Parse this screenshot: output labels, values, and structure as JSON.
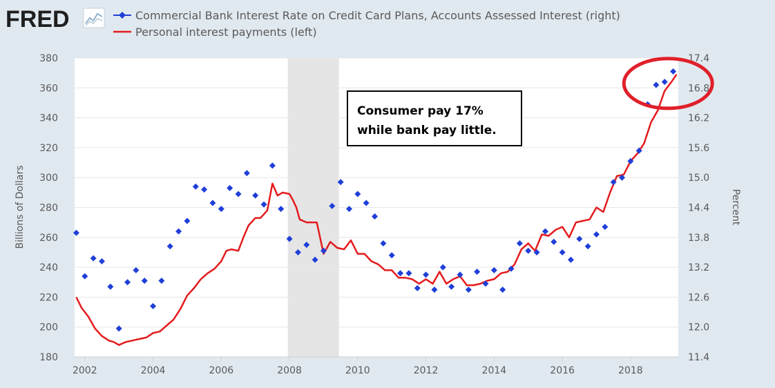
{
  "logo": {
    "text": "FRED"
  },
  "colors": {
    "background": "#e1e9f0",
    "plot_background": "#ffffff",
    "recession": "#e5e5e5",
    "gridline": "#e6e6e6",
    "series_blue": "#1f3fd8",
    "series_red": "#e41a1c",
    "highlight_circle": "#e0202a"
  },
  "chart_data": {
    "type": "line",
    "title": "",
    "legend": [
      {
        "label": "Commercial Bank Interest Rate on Credit Card Plans, Accounts Assessed Interest (right)",
        "marker": "diamond-line",
        "color": "#1f3fd8"
      },
      {
        "label": "Personal interest payments (left)",
        "marker": "line",
        "color": "#e41a1c"
      }
    ],
    "legend_placement": "top",
    "xlim": [
      2001.7,
      2019.4
    ],
    "x_ticks": [
      2002,
      2004,
      2006,
      2008,
      2010,
      2012,
      2014,
      2016,
      2018
    ],
    "y_left": {
      "label": "Billions of Dollars",
      "lim": [
        180,
        380
      ],
      "ticks": [
        180,
        200,
        220,
        240,
        260,
        280,
        300,
        320,
        340,
        360,
        380
      ]
    },
    "y_right": {
      "label": "Percent",
      "lim": [
        11.4,
        17.4
      ],
      "ticks": [
        "11.4",
        "12.0",
        "12.6",
        "13.2",
        "13.8",
        "14.4",
        "15.0",
        "15.6",
        "16.2",
        "16.8",
        "17.4"
      ]
    },
    "grid": true,
    "recessions": [
      [
        2007.95,
        2009.45
      ]
    ],
    "series": [
      {
        "name": "Personal interest payments (left)",
        "axis": "left",
        "style": "line",
        "color": "#e41a1c",
        "x": [
          2001.75,
          2001.9,
          2002.1,
          2002.3,
          2002.5,
          2002.7,
          2002.85,
          2003.0,
          2003.2,
          2003.4,
          2003.6,
          2003.8,
          2004.0,
          2004.2,
          2004.4,
          2004.6,
          2004.8,
          2005.0,
          2005.2,
          2005.4,
          2005.6,
          2005.8,
          2006.0,
          2006.15,
          2006.3,
          2006.5,
          2006.65,
          2006.8,
          2007.0,
          2007.15,
          2007.35,
          2007.5,
          2007.65,
          2007.8,
          2008.0,
          2008.1,
          2008.2,
          2008.3,
          2008.5,
          2008.8,
          2009.0,
          2009.2,
          2009.4,
          2009.6,
          2009.8,
          2010.0,
          2010.2,
          2010.4,
          2010.6,
          2010.8,
          2011.0,
          2011.2,
          2011.4,
          2011.6,
          2011.8,
          2012.0,
          2012.2,
          2012.4,
          2012.6,
          2012.8,
          2013.0,
          2013.2,
          2013.4,
          2013.6,
          2013.8,
          2014.0,
          2014.2,
          2014.4,
          2014.6,
          2014.8,
          2015.0,
          2015.2,
          2015.4,
          2015.6,
          2015.8,
          2016.0,
          2016.2,
          2016.4,
          2016.6,
          2016.8,
          2017.0,
          2017.2,
          2017.4,
          2017.6,
          2017.8,
          2018.0,
          2018.2,
          2018.4,
          2018.6,
          2018.8,
          2019.0,
          2019.2,
          2019.35
        ],
        "y": [
          220,
          213,
          207,
          199,
          194,
          191,
          190,
          188,
          190,
          191,
          192,
          193,
          196,
          197,
          201,
          205,
          212,
          221,
          226,
          232,
          236,
          239,
          244,
          251,
          252,
          251,
          260,
          268,
          273,
          273,
          278,
          296,
          288,
          290,
          289,
          285,
          280,
          272,
          270,
          270,
          249,
          257,
          253,
          252,
          258,
          249,
          249,
          244,
          242,
          238,
          238,
          233,
          233,
          232,
          229,
          232,
          229,
          237,
          229,
          232,
          234,
          228,
          228,
          229,
          231,
          232,
          236,
          237,
          242,
          252,
          256,
          251,
          262,
          261,
          265,
          267,
          260,
          270,
          271,
          272,
          280,
          277,
          290,
          301,
          302,
          311,
          316,
          323,
          337,
          345,
          358,
          364,
          369
        ]
      },
      {
        "name": "Commercial Bank Interest Rate on Credit Card Plans, Accounts Assessed Interest (right)",
        "axis": "right",
        "style": "markers",
        "marker": "diamond",
        "color": "#1f3fd8",
        "x": [
          2001.75,
          2002.0,
          2002.25,
          2002.5,
          2002.75,
          2003.0,
          2003.25,
          2003.5,
          2003.75,
          2004.0,
          2004.25,
          2004.5,
          2004.75,
          2005.0,
          2005.25,
          2005.5,
          2005.75,
          2006.0,
          2006.25,
          2006.5,
          2006.75,
          2007.0,
          2007.25,
          2007.5,
          2007.75,
          2008.0,
          2008.25,
          2008.5,
          2008.75,
          2009.0,
          2009.25,
          2009.5,
          2009.75,
          2010.0,
          2010.25,
          2010.5,
          2010.75,
          2011.0,
          2011.25,
          2011.5,
          2011.75,
          2012.0,
          2012.25,
          2012.5,
          2012.75,
          2013.0,
          2013.25,
          2013.5,
          2013.75,
          2014.0,
          2014.25,
          2014.5,
          2014.75,
          2015.0,
          2015.25,
          2015.5,
          2015.75,
          2016.0,
          2016.25,
          2016.5,
          2016.75,
          2017.0,
          2017.25,
          2017.5,
          2017.75,
          2018.0,
          2018.25,
          2018.5,
          2018.75,
          2019.0,
          2019.25
        ],
        "y": [
          13.89,
          13.02,
          13.38,
          13.32,
          12.81,
          11.97,
          12.9,
          13.14,
          12.93,
          12.42,
          12.93,
          13.62,
          13.92,
          14.13,
          14.82,
          14.76,
          14.49,
          14.37,
          14.79,
          14.67,
          15.09,
          14.64,
          14.46,
          15.24,
          14.37,
          13.77,
          13.5,
          13.65,
          13.35,
          13.53,
          14.43,
          14.91,
          14.37,
          14.67,
          14.49,
          14.22,
          13.68,
          13.44,
          13.08,
          13.08,
          12.78,
          13.05,
          12.75,
          13.2,
          12.81,
          13.05,
          12.75,
          13.11,
          12.87,
          13.14,
          12.75,
          13.17,
          13.68,
          13.53,
          13.5,
          13.92,
          13.71,
          13.5,
          13.35,
          13.77,
          13.62,
          13.86,
          14.01,
          14.91,
          15.0,
          15.33,
          15.54,
          16.47,
          16.86,
          16.92,
          17.13
        ]
      }
    ],
    "annotations": [
      {
        "type": "box",
        "lines": [
          "Consumer pay 17%",
          "while bank pay little."
        ]
      },
      {
        "type": "ellipse",
        "around": [
          2019.0,
          17.0
        ]
      }
    ]
  }
}
